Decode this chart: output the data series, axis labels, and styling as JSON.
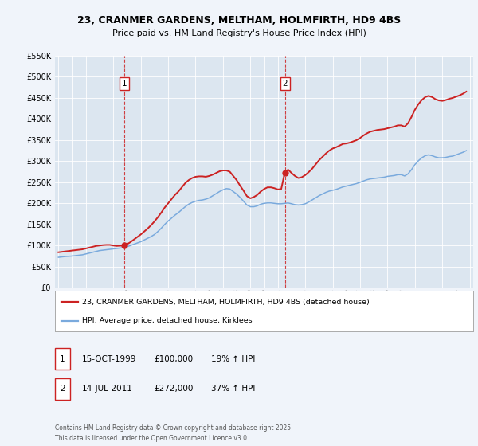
{
  "title": "23, CRANMER GARDENS, MELTHAM, HOLMFIRTH, HD9 4BS",
  "subtitle": "Price paid vs. HM Land Registry's House Price Index (HPI)",
  "background_color": "#f0f4fa",
  "plot_bg_color": "#dce6f0",
  "ylim": [
    0,
    550000
  ],
  "yticks": [
    0,
    50000,
    100000,
    150000,
    200000,
    250000,
    300000,
    350000,
    400000,
    450000,
    500000,
    550000
  ],
  "ytick_labels": [
    "£0",
    "£50K",
    "£100K",
    "£150K",
    "£200K",
    "£250K",
    "£300K",
    "£350K",
    "£400K",
    "£450K",
    "£500K",
    "£550K"
  ],
  "xtick_years": [
    1995,
    1996,
    1997,
    1998,
    1999,
    2000,
    2001,
    2002,
    2003,
    2004,
    2005,
    2006,
    2007,
    2008,
    2009,
    2010,
    2011,
    2012,
    2013,
    2014,
    2015,
    2016,
    2017,
    2018,
    2019,
    2020,
    2021,
    2022,
    2023,
    2024,
    2025
  ],
  "hpi_color": "#7aaadd",
  "price_color": "#cc2222",
  "marker_color": "#cc2222",
  "vline_color": "#cc2222",
  "transaction1": {
    "year": 1999.79,
    "value": 100000,
    "label": "1"
  },
  "transaction2": {
    "year": 2011.54,
    "value": 272000,
    "label": "2"
  },
  "legend_price_label": "23, CRANMER GARDENS, MELTHAM, HOLMFIRTH, HD9 4BS (detached house)",
  "legend_hpi_label": "HPI: Average price, detached house, Kirklees",
  "table_rows": [
    {
      "num": "1",
      "date": "15-OCT-1999",
      "price": "£100,000",
      "hpi": "19% ↑ HPI"
    },
    {
      "num": "2",
      "date": "14-JUL-2011",
      "price": "£272,000",
      "hpi": "37% ↑ HPI"
    }
  ],
  "footnote": "Contains HM Land Registry data © Crown copyright and database right 2025.\nThis data is licensed under the Open Government Licence v3.0.",
  "hpi_data": {
    "years": [
      1995.0,
      1995.25,
      1995.5,
      1995.75,
      1996.0,
      1996.25,
      1996.5,
      1996.75,
      1997.0,
      1997.25,
      1997.5,
      1997.75,
      1998.0,
      1998.25,
      1998.5,
      1998.75,
      1999.0,
      1999.25,
      1999.5,
      1999.75,
      2000.0,
      2000.25,
      2000.5,
      2000.75,
      2001.0,
      2001.25,
      2001.5,
      2001.75,
      2002.0,
      2002.25,
      2002.5,
      2002.75,
      2003.0,
      2003.25,
      2003.5,
      2003.75,
      2004.0,
      2004.25,
      2004.5,
      2004.75,
      2005.0,
      2005.25,
      2005.5,
      2005.75,
      2006.0,
      2006.25,
      2006.5,
      2006.75,
      2007.0,
      2007.25,
      2007.5,
      2007.75,
      2008.0,
      2008.25,
      2008.5,
      2008.75,
      2009.0,
      2009.25,
      2009.5,
      2009.75,
      2010.0,
      2010.25,
      2010.5,
      2010.75,
      2011.0,
      2011.25,
      2011.5,
      2011.75,
      2012.0,
      2012.25,
      2012.5,
      2012.75,
      2013.0,
      2013.25,
      2013.5,
      2013.75,
      2014.0,
      2014.25,
      2014.5,
      2014.75,
      2015.0,
      2015.25,
      2015.5,
      2015.75,
      2016.0,
      2016.25,
      2016.5,
      2016.75,
      2017.0,
      2017.25,
      2017.5,
      2017.75,
      2018.0,
      2018.25,
      2018.5,
      2018.75,
      2019.0,
      2019.25,
      2019.5,
      2019.75,
      2020.0,
      2020.25,
      2020.5,
      2020.75,
      2021.0,
      2021.25,
      2021.5,
      2021.75,
      2022.0,
      2022.25,
      2022.5,
      2022.75,
      2023.0,
      2023.25,
      2023.5,
      2023.75,
      2024.0,
      2024.25,
      2024.5,
      2024.75
    ],
    "values": [
      72000,
      73000,
      74000,
      74500,
      75000,
      76000,
      77000,
      78000,
      80000,
      82000,
      84000,
      86000,
      88000,
      89000,
      90000,
      91000,
      92000,
      93000,
      94000,
      95000,
      97000,
      100000,
      103000,
      106000,
      109000,
      113000,
      117000,
      121000,
      126000,
      133000,
      141000,
      150000,
      158000,
      165000,
      172000,
      178000,
      185000,
      192000,
      198000,
      202000,
      205000,
      207000,
      208000,
      210000,
      213000,
      218000,
      223000,
      228000,
      232000,
      235000,
      234000,
      228000,
      222000,
      214000,
      205000,
      196000,
      192000,
      192000,
      194000,
      198000,
      200000,
      201000,
      201000,
      200000,
      199000,
      199000,
      200000,
      201000,
      199000,
      197000,
      196000,
      197000,
      199000,
      203000,
      208000,
      213000,
      218000,
      222000,
      226000,
      229000,
      231000,
      233000,
      236000,
      239000,
      241000,
      243000,
      245000,
      247000,
      250000,
      253000,
      256000,
      258000,
      259000,
      260000,
      261000,
      262000,
      264000,
      265000,
      266000,
      268000,
      268000,
      265000,
      270000,
      280000,
      292000,
      301000,
      308000,
      313000,
      315000,
      313000,
      310000,
      308000,
      308000,
      309000,
      311000,
      312000,
      315000,
      318000,
      321000,
      325000
    ]
  },
  "price_data": {
    "years": [
      1995.0,
      1995.25,
      1995.5,
      1995.75,
      1996.0,
      1996.25,
      1996.5,
      1996.75,
      1997.0,
      1997.25,
      1997.5,
      1997.75,
      1998.0,
      1998.25,
      1998.5,
      1998.75,
      1999.0,
      1999.25,
      1999.5,
      1999.75,
      2000.0,
      2000.25,
      2000.5,
      2000.75,
      2001.0,
      2001.25,
      2001.5,
      2001.75,
      2002.0,
      2002.25,
      2002.5,
      2002.75,
      2003.0,
      2003.25,
      2003.5,
      2003.75,
      2004.0,
      2004.25,
      2004.5,
      2004.75,
      2005.0,
      2005.25,
      2005.5,
      2005.75,
      2006.0,
      2006.25,
      2006.5,
      2006.75,
      2007.0,
      2007.25,
      2007.5,
      2007.75,
      2008.0,
      2008.25,
      2008.5,
      2008.75,
      2009.0,
      2009.25,
      2009.5,
      2009.75,
      2010.0,
      2010.25,
      2010.5,
      2010.75,
      2011.0,
      2011.25,
      2011.5,
      2011.75,
      2012.0,
      2012.25,
      2012.5,
      2012.75,
      2013.0,
      2013.25,
      2013.5,
      2013.75,
      2014.0,
      2014.25,
      2014.5,
      2014.75,
      2015.0,
      2015.25,
      2015.5,
      2015.75,
      2016.0,
      2016.25,
      2016.5,
      2016.75,
      2017.0,
      2017.25,
      2017.5,
      2017.75,
      2018.0,
      2018.25,
      2018.5,
      2018.75,
      2019.0,
      2019.25,
      2019.5,
      2019.75,
      2020.0,
      2020.25,
      2020.5,
      2020.75,
      2021.0,
      2021.25,
      2021.5,
      2021.75,
      2022.0,
      2022.25,
      2022.5,
      2022.75,
      2023.0,
      2023.25,
      2023.5,
      2023.75,
      2024.0,
      2024.25,
      2024.5,
      2024.75
    ],
    "values": [
      84000,
      85000,
      86000,
      87000,
      88000,
      89000,
      90000,
      91000,
      93000,
      95000,
      97000,
      99000,
      100000,
      101000,
      101500,
      101500,
      100000,
      99000,
      99500,
      100000,
      103000,
      108000,
      114000,
      120000,
      126000,
      133000,
      140000,
      148000,
      157000,
      167000,
      178000,
      190000,
      200000,
      210000,
      220000,
      228000,
      238000,
      248000,
      255000,
      260000,
      263000,
      264000,
      264000,
      263000,
      265000,
      268000,
      272000,
      276000,
      278000,
      278000,
      275000,
      265000,
      255000,
      242000,
      230000,
      217000,
      212000,
      215000,
      220000,
      228000,
      234000,
      238000,
      238000,
      236000,
      233000,
      234000,
      272000,
      280000,
      272000,
      265000,
      260000,
      262000,
      267000,
      274000,
      282000,
      292000,
      302000,
      310000,
      318000,
      325000,
      330000,
      333000,
      337000,
      341000,
      342000,
      344000,
      347000,
      350000,
      355000,
      361000,
      366000,
      370000,
      372000,
      374000,
      375000,
      376000,
      378000,
      380000,
      382000,
      385000,
      385000,
      382000,
      390000,
      405000,
      422000,
      435000,
      445000,
      452000,
      455000,
      452000,
      447000,
      444000,
      443000,
      445000,
      448000,
      450000,
      453000,
      456000,
      460000,
      465000
    ]
  }
}
